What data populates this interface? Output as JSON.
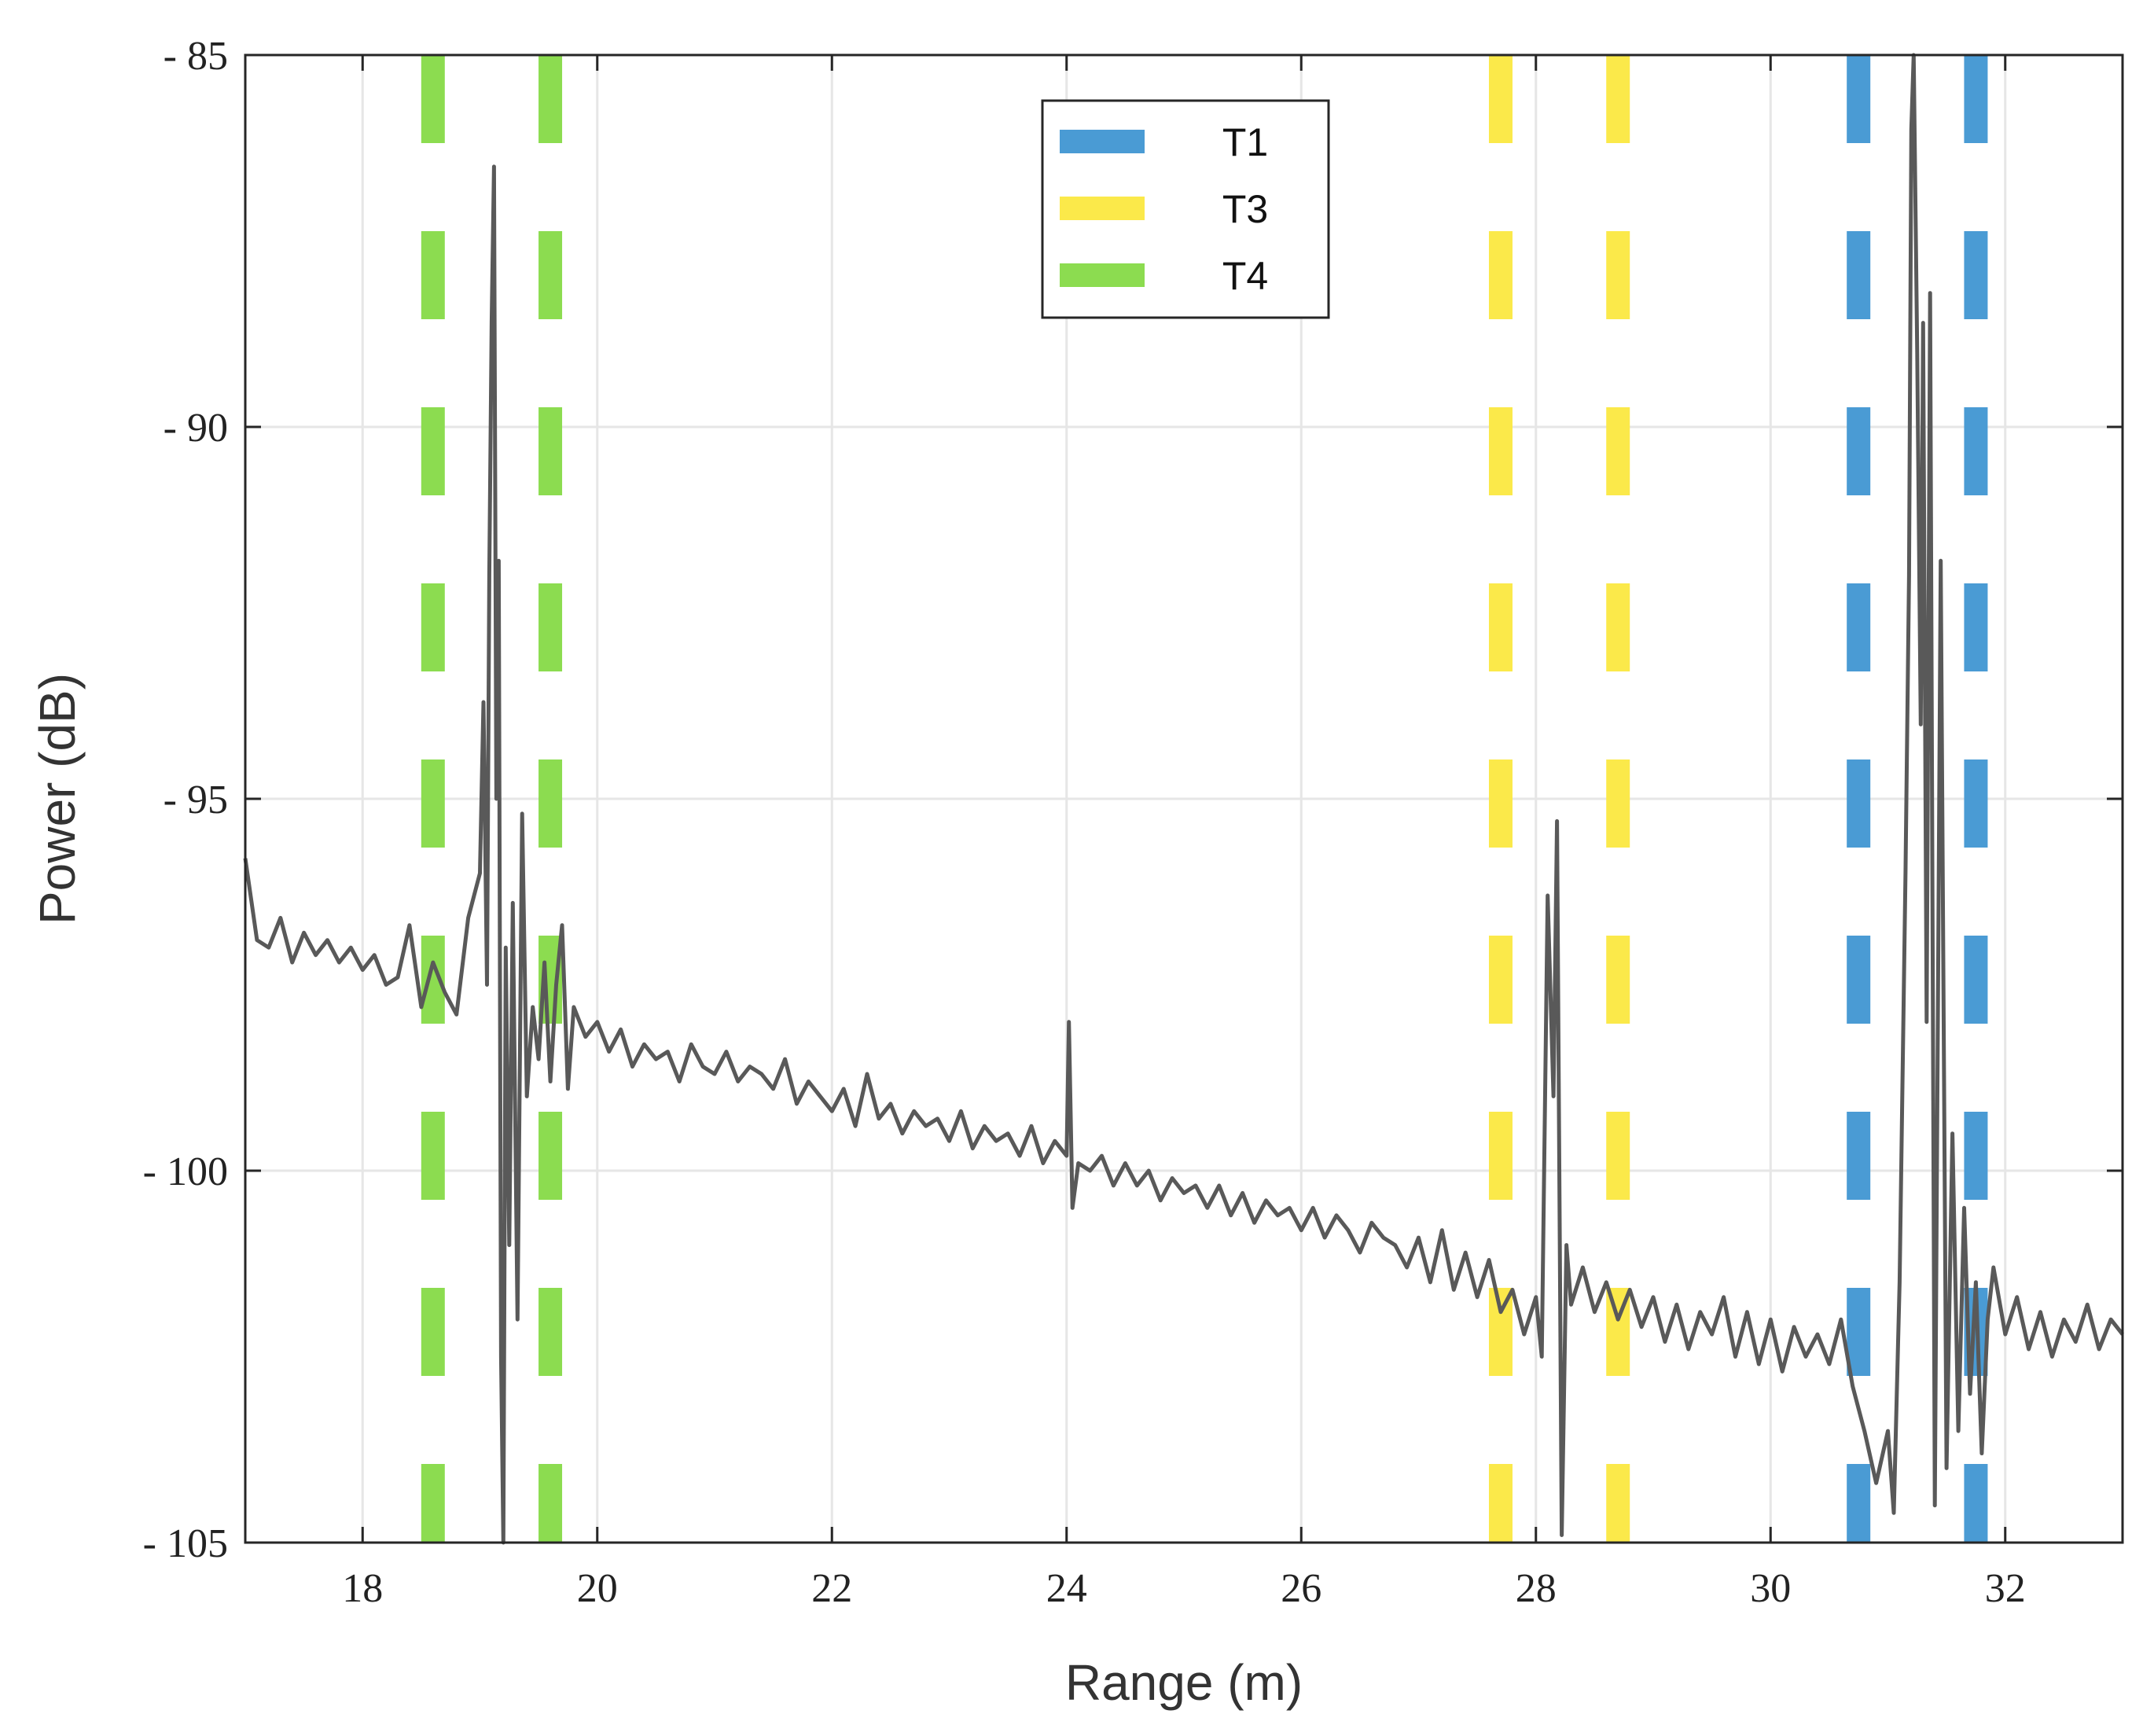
{
  "chart_data": {
    "type": "line",
    "title": "",
    "xlabel": "Range (m)",
    "ylabel": "Power (dB)",
    "xlim": [
      17,
      33
    ],
    "ylim": [
      -105,
      -85
    ],
    "x_ticks": [
      18,
      20,
      22,
      24,
      26,
      28,
      30,
      32
    ],
    "x_tick_labels": [
      "18",
      "20",
      "22",
      "24",
      "26",
      "28",
      "30",
      "32"
    ],
    "y_ticks": [
      -85,
      -90,
      -95,
      -100,
      -105
    ],
    "y_tick_labels": [
      "- 85",
      "- 90",
      "- 95",
      "- 100",
      "- 105"
    ],
    "grid": true,
    "legend_position": "top-center",
    "colors": {
      "trace": "#595959",
      "T1": "#4a9bd4",
      "T3": "#fbe94a",
      "T4": "#8cdc50",
      "grid": "#e6e6e6",
      "axis": "#262626"
    },
    "markers": [
      {
        "name": "T1",
        "x": [
          30.75,
          31.75
        ]
      },
      {
        "name": "T3",
        "x": [
          27.7,
          28.7
        ]
      },
      {
        "name": "T4",
        "x": [
          18.6,
          19.6
        ]
      }
    ],
    "series": [
      {
        "name": "power",
        "points": [
          [
            17.0,
            -95.8
          ],
          [
            17.1,
            -96.9
          ],
          [
            17.2,
            -97.0
          ],
          [
            17.3,
            -96.6
          ],
          [
            17.4,
            -97.2
          ],
          [
            17.5,
            -96.8
          ],
          [
            17.6,
            -97.1
          ],
          [
            17.7,
            -96.9
          ],
          [
            17.8,
            -97.2
          ],
          [
            17.9,
            -97.0
          ],
          [
            18.0,
            -97.3
          ],
          [
            18.1,
            -97.1
          ],
          [
            18.2,
            -97.5
          ],
          [
            18.3,
            -97.4
          ],
          [
            18.4,
            -96.7
          ],
          [
            18.5,
            -97.8
          ],
          [
            18.6,
            -97.2
          ],
          [
            18.7,
            -97.6
          ],
          [
            18.8,
            -97.9
          ],
          [
            18.9,
            -96.6
          ],
          [
            19.0,
            -96.0
          ],
          [
            19.03,
            -93.7
          ],
          [
            19.06,
            -97.5
          ],
          [
            19.08,
            -92.0
          ],
          [
            19.1,
            -88.6
          ],
          [
            19.12,
            -86.5
          ],
          [
            19.14,
            -95.0
          ],
          [
            19.16,
            -91.8
          ],
          [
            19.18,
            -102.5
          ],
          [
            19.2,
            -105.0
          ],
          [
            19.22,
            -97.0
          ],
          [
            19.25,
            -101.0
          ],
          [
            19.28,
            -96.4
          ],
          [
            19.32,
            -102.0
          ],
          [
            19.36,
            -95.2
          ],
          [
            19.4,
            -99.0
          ],
          [
            19.45,
            -97.8
          ],
          [
            19.5,
            -98.5
          ],
          [
            19.55,
            -97.2
          ],
          [
            19.6,
            -98.8
          ],
          [
            19.65,
            -97.5
          ],
          [
            19.7,
            -96.7
          ],
          [
            19.75,
            -98.9
          ],
          [
            19.8,
            -97.8
          ],
          [
            19.9,
            -98.2
          ],
          [
            20.0,
            -98.0
          ],
          [
            20.1,
            -98.4
          ],
          [
            20.2,
            -98.1
          ],
          [
            20.3,
            -98.6
          ],
          [
            20.4,
            -98.3
          ],
          [
            20.5,
            -98.5
          ],
          [
            20.6,
            -98.4
          ],
          [
            20.7,
            -98.8
          ],
          [
            20.8,
            -98.3
          ],
          [
            20.9,
            -98.6
          ],
          [
            21.0,
            -98.7
          ],
          [
            21.1,
            -98.4
          ],
          [
            21.2,
            -98.8
          ],
          [
            21.3,
            -98.6
          ],
          [
            21.4,
            -98.7
          ],
          [
            21.5,
            -98.9
          ],
          [
            21.6,
            -98.5
          ],
          [
            21.7,
            -99.1
          ],
          [
            21.8,
            -98.8
          ],
          [
            21.9,
            -99.0
          ],
          [
            22.0,
            -99.2
          ],
          [
            22.1,
            -98.9
          ],
          [
            22.2,
            -99.4
          ],
          [
            22.3,
            -98.7
          ],
          [
            22.4,
            -99.3
          ],
          [
            22.5,
            -99.1
          ],
          [
            22.6,
            -99.5
          ],
          [
            22.7,
            -99.2
          ],
          [
            22.8,
            -99.4
          ],
          [
            22.9,
            -99.3
          ],
          [
            23.0,
            -99.6
          ],
          [
            23.1,
            -99.2
          ],
          [
            23.2,
            -99.7
          ],
          [
            23.3,
            -99.4
          ],
          [
            23.4,
            -99.6
          ],
          [
            23.5,
            -99.5
          ],
          [
            23.6,
            -99.8
          ],
          [
            23.7,
            -99.4
          ],
          [
            23.8,
            -99.9
          ],
          [
            23.9,
            -99.6
          ],
          [
            24.0,
            -99.8
          ],
          [
            24.02,
            -98.0
          ],
          [
            24.05,
            -100.5
          ],
          [
            24.1,
            -99.9
          ],
          [
            24.2,
            -100.0
          ],
          [
            24.3,
            -99.8
          ],
          [
            24.4,
            -100.2
          ],
          [
            24.5,
            -99.9
          ],
          [
            24.6,
            -100.2
          ],
          [
            24.7,
            -100.0
          ],
          [
            24.8,
            -100.4
          ],
          [
            24.9,
            -100.1
          ],
          [
            25.0,
            -100.3
          ],
          [
            25.1,
            -100.2
          ],
          [
            25.2,
            -100.5
          ],
          [
            25.3,
            -100.2
          ],
          [
            25.4,
            -100.6
          ],
          [
            25.5,
            -100.3
          ],
          [
            25.6,
            -100.7
          ],
          [
            25.7,
            -100.4
          ],
          [
            25.8,
            -100.6
          ],
          [
            25.9,
            -100.5
          ],
          [
            26.0,
            -100.8
          ],
          [
            26.1,
            -100.5
          ],
          [
            26.2,
            -100.9
          ],
          [
            26.3,
            -100.6
          ],
          [
            26.4,
            -100.8
          ],
          [
            26.5,
            -101.1
          ],
          [
            26.6,
            -100.7
          ],
          [
            26.7,
            -100.9
          ],
          [
            26.8,
            -101.0
          ],
          [
            26.9,
            -101.3
          ],
          [
            27.0,
            -100.9
          ],
          [
            27.1,
            -101.5
          ],
          [
            27.2,
            -100.8
          ],
          [
            27.3,
            -101.6
          ],
          [
            27.4,
            -101.1
          ],
          [
            27.5,
            -101.7
          ],
          [
            27.6,
            -101.2
          ],
          [
            27.7,
            -101.9
          ],
          [
            27.8,
            -101.6
          ],
          [
            27.9,
            -102.2
          ],
          [
            28.0,
            -101.7
          ],
          [
            28.05,
            -102.5
          ],
          [
            28.1,
            -96.3
          ],
          [
            28.15,
            -99.0
          ],
          [
            28.18,
            -95.3
          ],
          [
            28.22,
            -104.9
          ],
          [
            28.26,
            -101.0
          ],
          [
            28.3,
            -101.8
          ],
          [
            28.4,
            -101.3
          ],
          [
            28.5,
            -101.9
          ],
          [
            28.6,
            -101.5
          ],
          [
            28.7,
            -102.0
          ],
          [
            28.8,
            -101.6
          ],
          [
            28.9,
            -102.1
          ],
          [
            29.0,
            -101.7
          ],
          [
            29.1,
            -102.3
          ],
          [
            29.2,
            -101.8
          ],
          [
            29.3,
            -102.4
          ],
          [
            29.4,
            -101.9
          ],
          [
            29.5,
            -102.2
          ],
          [
            29.6,
            -101.7
          ],
          [
            29.7,
            -102.5
          ],
          [
            29.8,
            -101.9
          ],
          [
            29.9,
            -102.6
          ],
          [
            30.0,
            -102.0
          ],
          [
            30.1,
            -102.7
          ],
          [
            30.2,
            -102.1
          ],
          [
            30.3,
            -102.5
          ],
          [
            30.4,
            -102.2
          ],
          [
            30.5,
            -102.6
          ],
          [
            30.6,
            -102.0
          ],
          [
            30.7,
            -102.9
          ],
          [
            30.8,
            -103.5
          ],
          [
            30.9,
            -104.2
          ],
          [
            31.0,
            -103.5
          ],
          [
            31.05,
            -104.6
          ],
          [
            31.1,
            -101.5
          ],
          [
            31.15,
            -96.0
          ],
          [
            31.18,
            -92.0
          ],
          [
            31.2,
            -86.0
          ],
          [
            31.22,
            -85.0
          ],
          [
            31.25,
            -89.0
          ],
          [
            31.28,
            -94.0
          ],
          [
            31.3,
            -88.6
          ],
          [
            31.33,
            -98.0
          ],
          [
            31.36,
            -88.2
          ],
          [
            31.4,
            -104.5
          ],
          [
            31.45,
            -91.8
          ],
          [
            31.5,
            -104.0
          ],
          [
            31.55,
            -99.5
          ],
          [
            31.6,
            -103.5
          ],
          [
            31.65,
            -100.5
          ],
          [
            31.7,
            -103.0
          ],
          [
            31.75,
            -101.5
          ],
          [
            31.8,
            -103.8
          ],
          [
            31.85,
            -102.0
          ],
          [
            31.9,
            -101.3
          ],
          [
            32.0,
            -102.2
          ],
          [
            32.1,
            -101.7
          ],
          [
            32.2,
            -102.4
          ],
          [
            32.3,
            -101.9
          ],
          [
            32.4,
            -102.5
          ],
          [
            32.5,
            -102.0
          ],
          [
            32.6,
            -102.3
          ],
          [
            32.7,
            -101.8
          ],
          [
            32.8,
            -102.4
          ],
          [
            32.9,
            -102.0
          ],
          [
            33.0,
            -102.2
          ]
        ]
      }
    ]
  }
}
